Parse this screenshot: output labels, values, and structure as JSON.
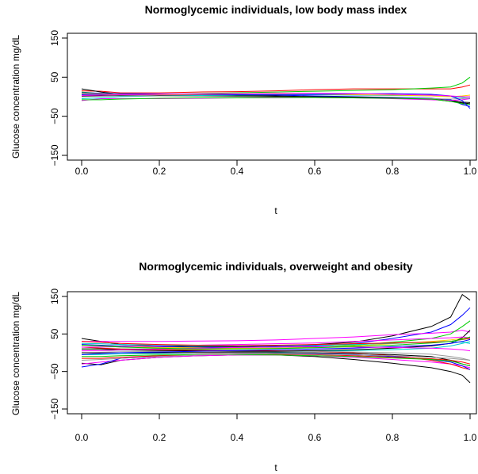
{
  "chart_data": [
    {
      "type": "line",
      "title": "Normoglycemic individuals, low body mass index",
      "xlabel": "t",
      "ylabel": "Glucose concentration mg/dL",
      "xlim": [
        0,
        1
      ],
      "ylim": [
        -150,
        150
      ],
      "x_ticks": [
        0.0,
        0.2,
        0.4,
        0.6,
        0.8,
        1.0
      ],
      "x_tick_labels": [
        "0.0",
        "0.2",
        "0.4",
        "0.6",
        "0.8",
        "1.0"
      ],
      "y_ticks": [
        -150,
        -50,
        50,
        150
      ],
      "y_tick_labels": [
        "−150",
        "−50",
        "50",
        "150"
      ],
      "grid": false,
      "legend": "none",
      "x": [
        0,
        0.05,
        0.1,
        0.2,
        0.3,
        0.4,
        0.5,
        0.6,
        0.7,
        0.8,
        0.9,
        0.95,
        0.98,
        1.0
      ],
      "series": [
        {
          "color": "#ff0000",
          "values": [
            15,
            14,
            10,
            10,
            12,
            13,
            15,
            18,
            20,
            20,
            20,
            20,
            25,
            30
          ]
        },
        {
          "color": "#00cc00",
          "values": [
            12,
            8,
            6,
            6,
            8,
            10,
            12,
            14,
            16,
            18,
            22,
            25,
            35,
            50
          ]
        },
        {
          "color": "#0000ff",
          "values": [
            5,
            6,
            6,
            6,
            5,
            5,
            4,
            2,
            0,
            -2,
            -4,
            -8,
            -20,
            -25
          ]
        },
        {
          "color": "#000000",
          "values": [
            20,
            12,
            6,
            4,
            4,
            3,
            2,
            0,
            -1,
            -3,
            -6,
            -12,
            -16,
            -18
          ]
        },
        {
          "color": "#000000",
          "values": [
            2,
            2,
            3,
            2,
            2,
            1,
            0,
            -1,
            -2,
            -4,
            -6,
            -10,
            -14,
            -15
          ]
        },
        {
          "color": "#ff00ff",
          "values": [
            -10,
            -5,
            -5,
            -5,
            -4,
            -3,
            -3,
            -2,
            -3,
            -5,
            -8,
            -10,
            -8,
            -5
          ]
        },
        {
          "color": "#00cccc",
          "values": [
            -5,
            -3,
            0,
            2,
            3,
            4,
            5,
            5,
            4,
            3,
            2,
            0,
            -2,
            -4
          ]
        },
        {
          "color": "#ffcc00",
          "values": [
            8,
            7,
            6,
            5,
            5,
            5,
            6,
            6,
            5,
            4,
            2,
            0,
            2,
            4
          ]
        },
        {
          "color": "#999999",
          "values": [
            0,
            1,
            2,
            2,
            1,
            0,
            -1,
            -2,
            -3,
            -4,
            -5,
            -6,
            -5,
            -3
          ]
        },
        {
          "color": "#00cc00",
          "values": [
            -8,
            -8,
            -6,
            -4,
            -3,
            -3,
            -2,
            -2,
            -3,
            -4,
            -6,
            -12,
            -18,
            -20
          ]
        },
        {
          "color": "#0000ff",
          "values": [
            10,
            9,
            8,
            7,
            6,
            5,
            5,
            6,
            7,
            8,
            6,
            2,
            -10,
            -30
          ]
        },
        {
          "color": "#ff00ff",
          "values": [
            3,
            4,
            5,
            6,
            7,
            8,
            9,
            9,
            8,
            6,
            4,
            2,
            0,
            0
          ]
        }
      ]
    },
    {
      "type": "line",
      "title": "Normoglycemic individuals, overweight and obesity",
      "xlabel": "t",
      "ylabel": "Glucose concentration mg/dL",
      "xlim": [
        0,
        1
      ],
      "ylim": [
        -150,
        150
      ],
      "x_ticks": [
        0.0,
        0.2,
        0.4,
        0.6,
        0.8,
        1.0
      ],
      "x_tick_labels": [
        "0.0",
        "0.2",
        "0.4",
        "0.6",
        "0.8",
        "1.0"
      ],
      "y_ticks": [
        -150,
        -50,
        50,
        150
      ],
      "y_tick_labels": [
        "−150",
        "−50",
        "50",
        "150"
      ],
      "grid": false,
      "legend": "none",
      "x": [
        0,
        0.05,
        0.1,
        0.2,
        0.3,
        0.4,
        0.5,
        0.6,
        0.7,
        0.8,
        0.9,
        0.95,
        0.98,
        1.0
      ],
      "series": [
        {
          "color": "#000000",
          "values": [
            38,
            30,
            22,
            18,
            16,
            16,
            18,
            22,
            28,
            45,
            70,
            95,
            155,
            140
          ]
        },
        {
          "color": "#000000",
          "values": [
            -28,
            -32,
            -20,
            -12,
            -8,
            -6,
            -6,
            -10,
            -18,
            -28,
            -40,
            -50,
            -60,
            -80
          ]
        },
        {
          "color": "#0000ff",
          "values": [
            22,
            20,
            18,
            16,
            14,
            14,
            16,
            18,
            24,
            38,
            55,
            75,
            100,
            120
          ]
        },
        {
          "color": "#ff00ff",
          "values": [
            30,
            30,
            30,
            30,
            31,
            32,
            34,
            38,
            42,
            48,
            52,
            55,
            60,
            55
          ]
        },
        {
          "color": "#ff00ff",
          "values": [
            -30,
            -25,
            -20,
            -12,
            -8,
            -6,
            -6,
            -8,
            -12,
            -18,
            -25,
            -30,
            -35,
            -40
          ]
        },
        {
          "color": "#00cc00",
          "values": [
            10,
            10,
            10,
            10,
            10,
            11,
            12,
            15,
            20,
            28,
            38,
            50,
            70,
            85
          ]
        },
        {
          "color": "#ff0000",
          "values": [
            15,
            12,
            10,
            8,
            7,
            6,
            5,
            4,
            0,
            -8,
            -20,
            -30,
            -40,
            -45
          ]
        },
        {
          "color": "#00cccc",
          "values": [
            -5,
            -5,
            -3,
            -2,
            0,
            1,
            2,
            4,
            6,
            8,
            12,
            18,
            25,
            30
          ]
        },
        {
          "color": "#0000ff",
          "values": [
            -38,
            -30,
            -15,
            -8,
            -5,
            -4,
            -3,
            -3,
            -5,
            -10,
            -18,
            -25,
            -35,
            -45
          ]
        },
        {
          "color": "#999999",
          "values": [
            5,
            5,
            4,
            3,
            2,
            2,
            3,
            4,
            2,
            0,
            -4,
            -10,
            -15,
            -20
          ]
        },
        {
          "color": "#ffcc00",
          "values": [
            20,
            18,
            16,
            14,
            13,
            12,
            12,
            14,
            18,
            24,
            30,
            34,
            38,
            40
          ]
        },
        {
          "color": "#000000",
          "values": [
            10,
            10,
            8,
            6,
            5,
            4,
            4,
            6,
            8,
            12,
            18,
            25,
            40,
            60
          ]
        },
        {
          "color": "#000000",
          "values": [
            0,
            0,
            0,
            0,
            0,
            0,
            0,
            0,
            -2,
            -5,
            -10,
            -20,
            -30,
            -35
          ]
        },
        {
          "color": "#ff0000",
          "values": [
            -15,
            -15,
            -12,
            -8,
            -5,
            -4,
            -4,
            -5,
            -8,
            -12,
            -16,
            -20,
            -25,
            -30
          ]
        },
        {
          "color": "#00cc00",
          "values": [
            -10,
            -10,
            -8,
            -6,
            -5,
            -5,
            -6,
            -8,
            -10,
            -14,
            -18,
            -22,
            -30,
            -35
          ]
        },
        {
          "color": "#ff00ff",
          "values": [
            15,
            15,
            16,
            18,
            20,
            22,
            24,
            26,
            30,
            34,
            38,
            40,
            42,
            40
          ]
        },
        {
          "color": "#00cccc",
          "values": [
            25,
            24,
            22,
            20,
            18,
            18,
            19,
            20,
            22,
            25,
            28,
            30,
            28,
            25
          ]
        },
        {
          "color": "#0000ff",
          "values": [
            -5,
            -2,
            0,
            2,
            4,
            6,
            8,
            10,
            12,
            16,
            20,
            25,
            30,
            35
          ]
        },
        {
          "color": "#999999",
          "values": [
            -20,
            -18,
            -15,
            -10,
            -6,
            -4,
            -3,
            -4,
            -6,
            -8,
            -12,
            -15,
            -18,
            -20
          ]
        },
        {
          "color": "#ff0000",
          "values": [
            30,
            28,
            25,
            22,
            20,
            19,
            20,
            22,
            24,
            26,
            28,
            30,
            35,
            38
          ]
        },
        {
          "color": "#ff00ff",
          "values": [
            5,
            6,
            8,
            10,
            12,
            14,
            15,
            16,
            15,
            14,
            12,
            10,
            8,
            5
          ]
        },
        {
          "color": "#00cc00",
          "values": [
            20,
            18,
            15,
            12,
            10,
            10,
            11,
            13,
            16,
            20,
            26,
            30,
            36,
            42
          ]
        }
      ]
    }
  ]
}
